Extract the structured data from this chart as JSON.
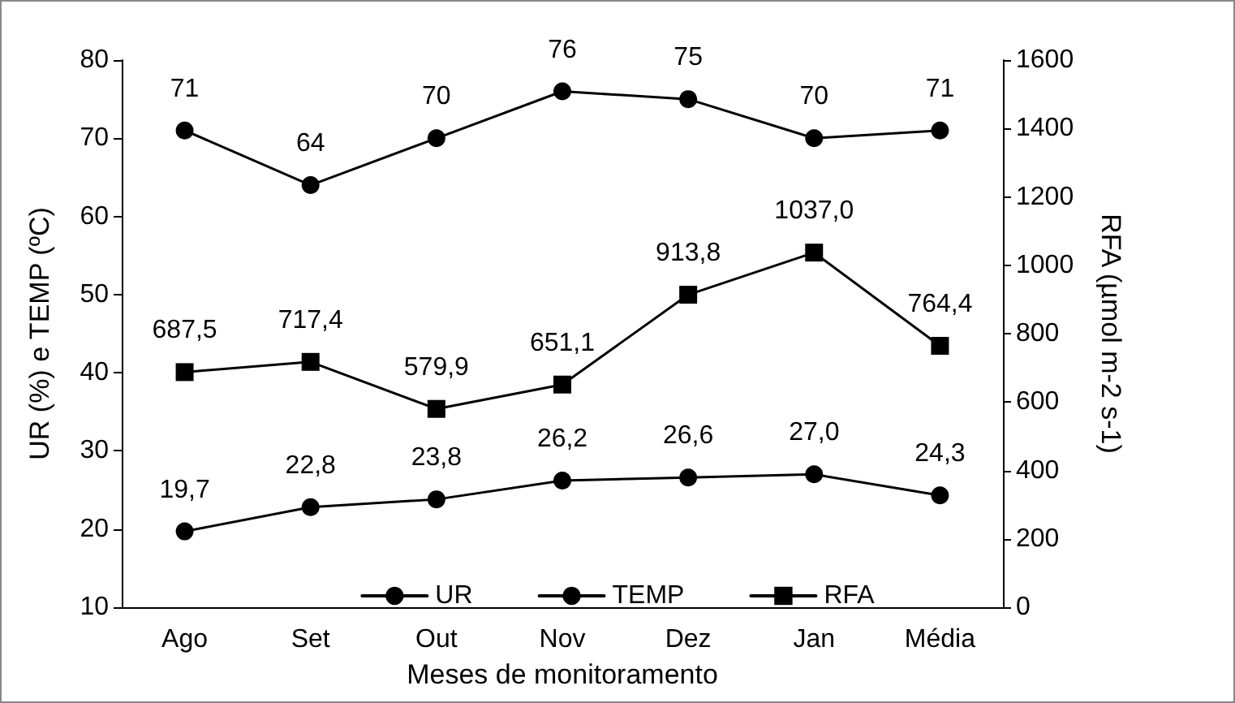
{
  "chart_data": {
    "type": "line",
    "categories": [
      "Ago",
      "Set",
      "Out",
      "Nov",
      "Dez",
      "Jan",
      "Média"
    ],
    "xlabel": "Meses de monitoramento",
    "ylabel": "UR (%) e TEMP (ºC)",
    "y2label": "RFA (µmol m-2 s-1)",
    "ylim": [
      10,
      80
    ],
    "yticks": [
      10,
      20,
      30,
      40,
      50,
      60,
      70,
      80
    ],
    "y2lim": [
      0,
      1600
    ],
    "y2ticks": [
      0,
      200,
      400,
      600,
      800,
      1000,
      1200,
      1400,
      1600
    ],
    "grid": false,
    "legend": "bottom",
    "line_style": "solid",
    "series": [
      {
        "name": "UR",
        "color": "#000000",
        "marker": "circle",
        "values": [
          71,
          64,
          70,
          76,
          75,
          70,
          71
        ],
        "value_labels": [
          "71",
          "64",
          "70",
          "76",
          "75",
          "70",
          "71"
        ]
      },
      {
        "name": "TEMP",
        "color": "#000000",
        "marker": "circle",
        "values": [
          19.7,
          22.8,
          23.8,
          26.2,
          26.6,
          27.0,
          24.3
        ],
        "value_labels": [
          "19,7",
          "22,8",
          "23,8",
          "26,2",
          "26,6",
          "27,0",
          "24,3"
        ]
      },
      {
        "name": "RFA",
        "color": "#000000",
        "marker": "square",
        "axis": "y2",
        "values": [
          687.5,
          717.4,
          579.9,
          651.1,
          913.8,
          1037.0,
          764.4
        ],
        "value_labels": [
          "687,5",
          "717,4",
          "579,9",
          "651,1",
          "913,8",
          "1037,0",
          "764,4"
        ]
      }
    ]
  }
}
